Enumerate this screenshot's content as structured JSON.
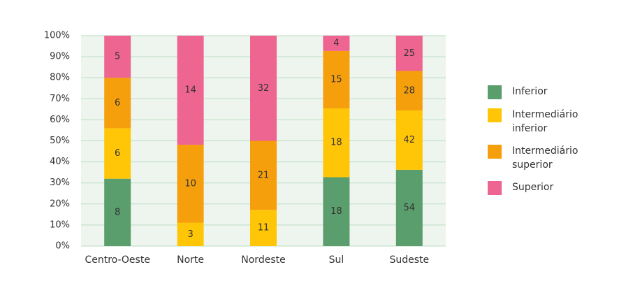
{
  "chart_data": {
    "type": "percent_stacked_bar",
    "categories": [
      "Centro-Oeste",
      "Norte",
      "Nordeste",
      "Sul",
      "Sudeste"
    ],
    "series": [
      {
        "name": "Inferior",
        "color": "#5b9e6d",
        "values": [
          8,
          null,
          null,
          18,
          54
        ]
      },
      {
        "name": "Intermediário inferior",
        "color": "#ffc608",
        "values": [
          6,
          3,
          11,
          18,
          42
        ]
      },
      {
        "name": "Intermediário superior",
        "color": "#f59f0c",
        "values": [
          6,
          10,
          21,
          15,
          28
        ]
      },
      {
        "name": "Superior",
        "color": "#ee6592",
        "values": [
          5,
          14,
          32,
          4,
          25
        ]
      }
    ],
    "ylim": [
      0,
      100
    ],
    "yticks": [
      {
        "value": 0,
        "label": "0%"
      },
      {
        "value": 10,
        "label": "10%"
      },
      {
        "value": 20,
        "label": "20%"
      },
      {
        "value": 30,
        "label": "30%"
      },
      {
        "value": 40,
        "label": "40%"
      },
      {
        "value": 50,
        "label": "50%"
      },
      {
        "value": 60,
        "label": "60%"
      },
      {
        "value": 70,
        "label": "70%"
      },
      {
        "value": 80,
        "label": "80%"
      },
      {
        "value": 90,
        "label": "90%"
      },
      {
        "value": 100,
        "label": "100%"
      }
    ],
    "grid": true,
    "legend": "right"
  }
}
